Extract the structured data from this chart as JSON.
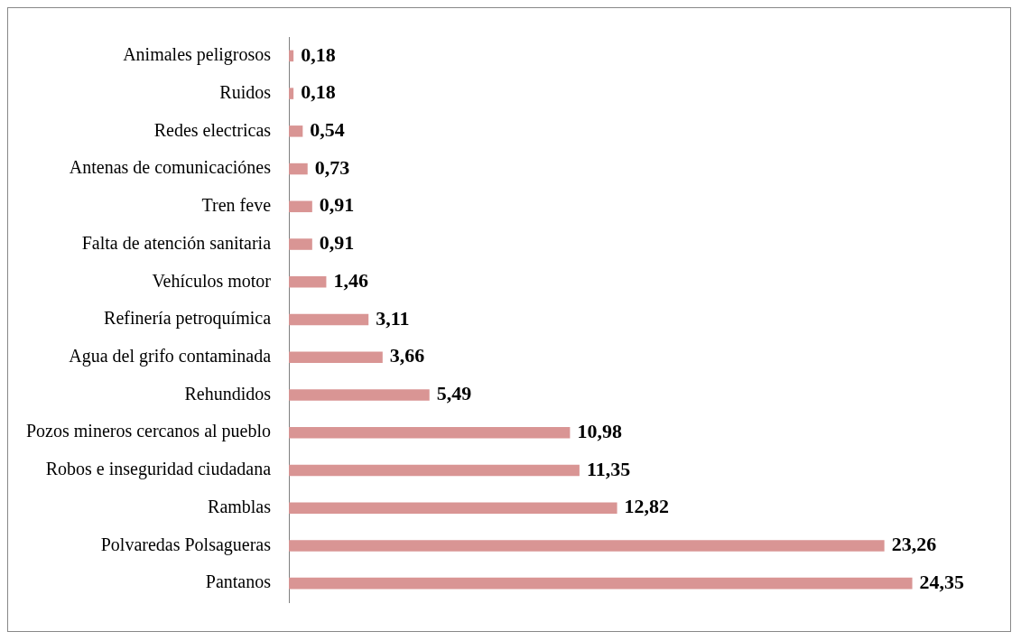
{
  "chart_data": {
    "type": "bar",
    "orientation": "horizontal",
    "categories": [
      "Animales peligrosos",
      "Ruidos",
      "Redes electricas",
      "Antenas de comunicaciónes",
      "Tren feve",
      "Falta de atención sanitaria",
      "Vehículos motor",
      "Refinería petroquímica",
      "Agua del grifo contaminada",
      "Rehundidos",
      "Pozos mineros cercanos al pueblo",
      "Robos e inseguridad ciudadana",
      "Ramblas",
      "Polvaredas Polsagueras",
      "Pantanos"
    ],
    "values": [
      0.18,
      0.18,
      0.54,
      0.73,
      0.91,
      0.91,
      1.46,
      3.11,
      3.66,
      5.49,
      10.98,
      11.35,
      12.82,
      23.26,
      24.35
    ],
    "value_labels": [
      "0,18",
      "0,18",
      "0,54",
      "0,73",
      "0,91",
      "0,91",
      "1,46",
      "3,11",
      "3,66",
      "5,49",
      "10,98",
      "11,35",
      "12,82",
      "23,26",
      "24,35"
    ],
    "color": "#d99594",
    "legend": false,
    "tick_labels": "y"
  }
}
